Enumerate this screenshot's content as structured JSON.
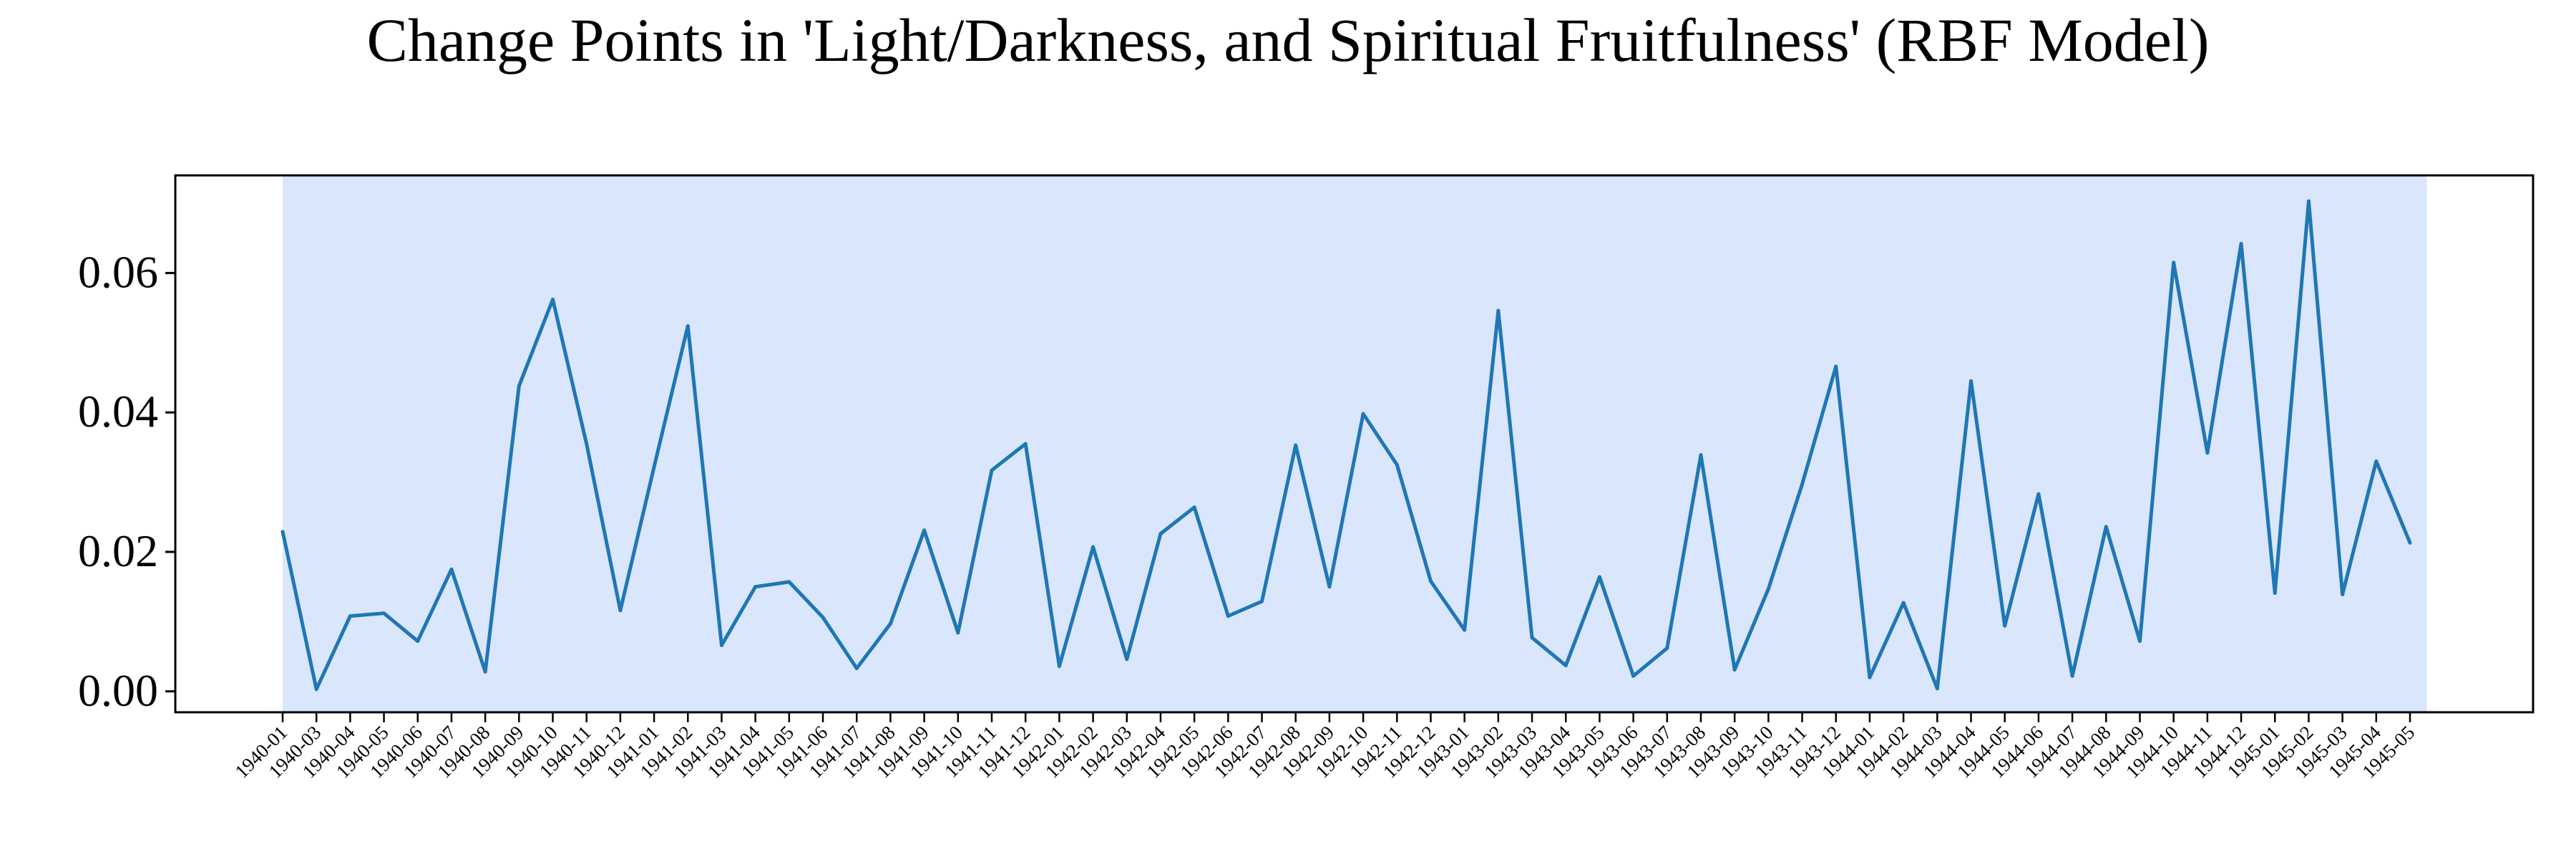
{
  "chart_data": {
    "type": "line",
    "title": "Change Points in 'Light/Darkness, and Spiritual Fruitfulness' (RBF Model)",
    "xlabel": "",
    "ylabel": "",
    "ylim": [
      -0.003,
      0.074
    ],
    "yticks": [
      0.0,
      0.02,
      0.04,
      0.06
    ],
    "ytick_labels": [
      "0.00",
      "0.02",
      "0.04",
      "0.06"
    ],
    "grid": false,
    "legend": "none",
    "line_color": "#1f77b4",
    "shade_color": "#dae6fb",
    "shaded_region": [
      "1940-01",
      "1945-05"
    ],
    "series": [
      {
        "x": [
          "1940-01",
          "1940-03",
          "1940-04",
          "1940-05",
          "1940-06",
          "1940-07",
          "1940-08",
          "1940-09",
          "1940-10",
          "1940-11",
          "1940-12",
          "1941-01",
          "1941-02",
          "1941-03",
          "1941-04",
          "1941-05",
          "1941-06",
          "1941-07",
          "1941-08",
          "1941-09",
          "1941-10",
          "1941-11",
          "1941-12",
          "1942-01",
          "1942-02",
          "1942-03",
          "1942-04",
          "1942-05",
          "1942-06",
          "1942-07",
          "1942-08",
          "1942-09",
          "1942-10",
          "1942-11",
          "1942-12",
          "1943-01",
          "1943-02",
          "1943-03",
          "1943-04",
          "1943-05",
          "1943-06",
          "1943-07",
          "1943-08",
          "1943-09",
          "1943-10",
          "1943-11",
          "1943-12",
          "1944-01",
          "1944-02",
          "1944-03",
          "1944-04",
          "1944-05",
          "1944-06",
          "1944-07",
          "1944-08",
          "1944-09",
          "1944-10",
          "1944-11",
          "1944-12",
          "1945-01",
          "1945-02",
          "1945-03",
          "1945-04",
          "1945-05"
        ],
        "values": [
          0.0229,
          0.0003,
          0.0108,
          0.0112,
          0.0072,
          0.0175,
          0.0028,
          0.0438,
          0.0562,
          0.0355,
          0.0116,
          0.0322,
          0.0524,
          0.0066,
          0.015,
          0.0157,
          0.0106,
          0.0033,
          0.0097,
          0.0231,
          0.0084,
          0.0317,
          0.0355,
          0.0036,
          0.0207,
          0.0046,
          0.0226,
          0.0264,
          0.0108,
          0.0129,
          0.0353,
          0.015,
          0.0398,
          0.0325,
          0.0158,
          0.0088,
          0.0546,
          0.0077,
          0.0037,
          0.0164,
          0.0022,
          0.0062,
          0.0339,
          0.0031,
          0.0147,
          0.0297,
          0.0466,
          0.002,
          0.0127,
          0.0004,
          0.0445,
          0.0094,
          0.0283,
          0.0022,
          0.0236,
          0.0072,
          0.0615,
          0.0342,
          0.0642,
          0.0141,
          0.0703,
          0.0139,
          0.033,
          0.0213
        ]
      }
    ]
  }
}
